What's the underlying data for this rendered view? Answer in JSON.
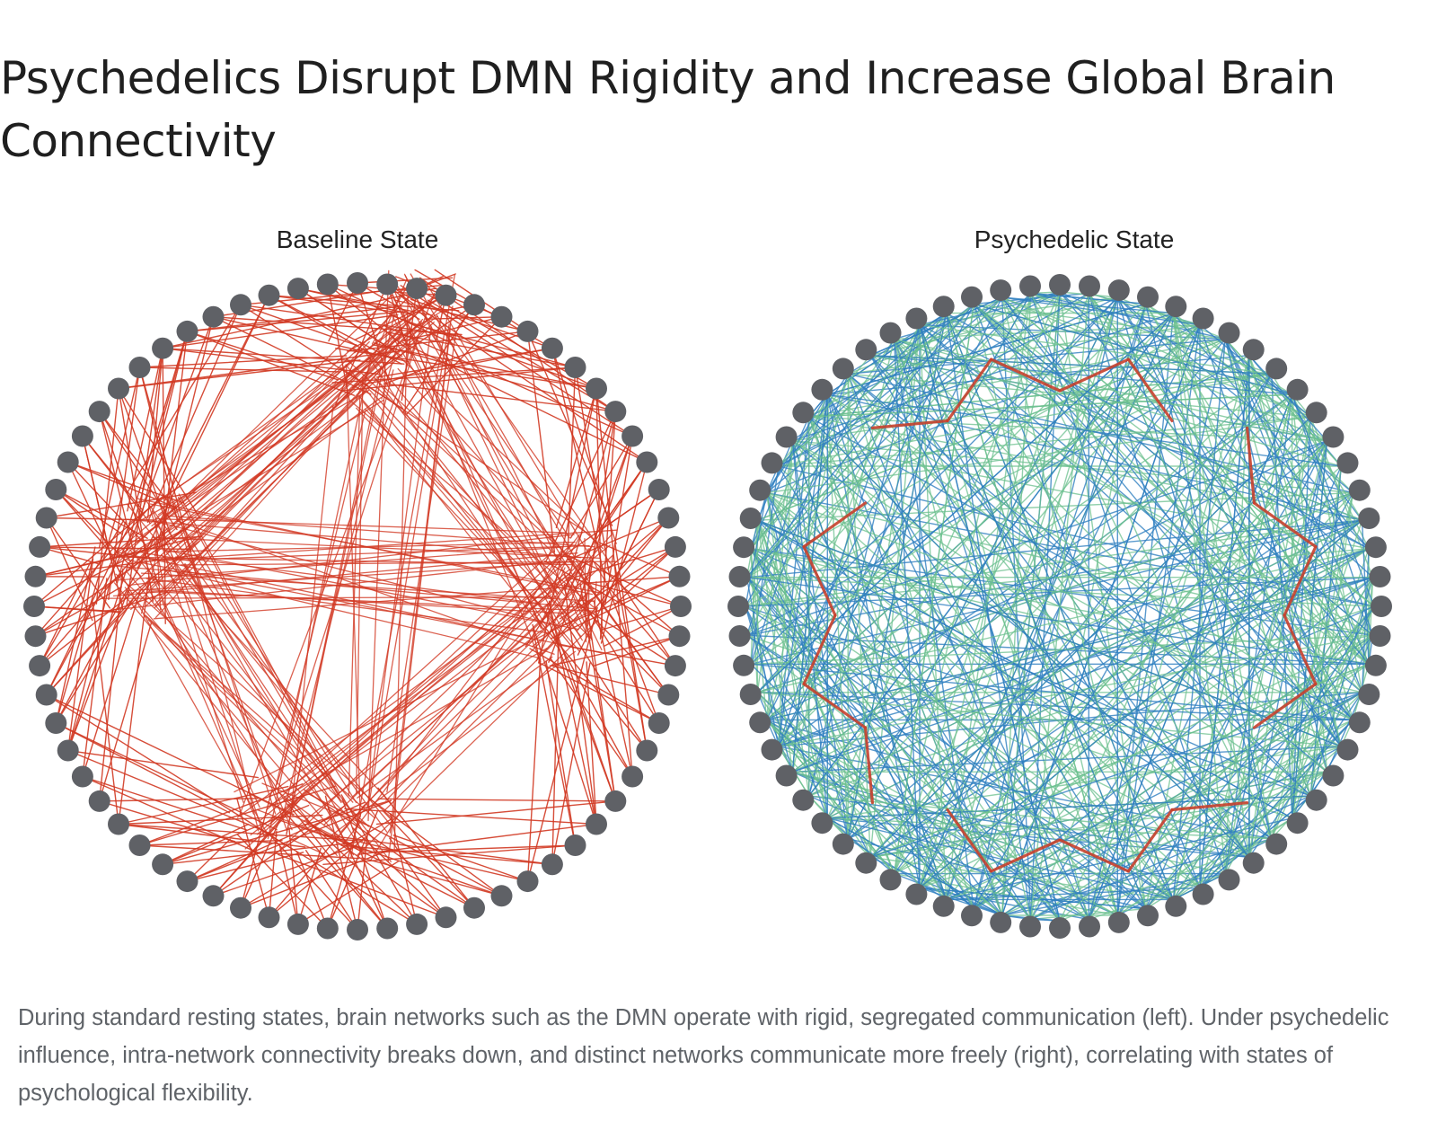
{
  "header": {
    "title": "Psychedelics Disrupt DMN Rigidity and Increase Global Brain Connectivity"
  },
  "panels": [
    {
      "title": "Baseline State"
    },
    {
      "title": "Psychedelic State"
    }
  ],
  "caption": {
    "text": "During standard resting states, brain networks such as the DMN operate with rigid, segregated communication (left). Under psychedelic influence, intra-network connectivity breaks down, and distinct networks communicate more freely (right), correlating with states of psychological flexibility."
  },
  "colors": {
    "node": "#5f6166",
    "baseline_edge": "#d23a24",
    "psychedelic_edge_blue": "#2f7fc0",
    "psychedelic_edge_green": "#6cc08f",
    "dmn_path": "#c6402c"
  }
}
